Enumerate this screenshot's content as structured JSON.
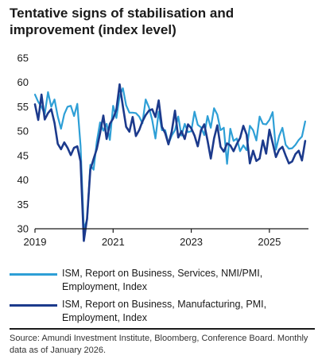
{
  "title": "Tentative signs of stabilisation and improvement (index level)",
  "source": "Source: Amundi Investment Institute, Bloomberg, Conference Board. Monthly data as of January 2026.",
  "chart_data": {
    "type": "line",
    "title": "Tentative signs of stabilisation and improvement (index level)",
    "xlabel": "",
    "ylabel": "",
    "xlim": [
      "2019-01",
      "2026-01"
    ],
    "ylim": [
      30,
      65
    ],
    "y_ticks": [
      30,
      35,
      40,
      45,
      50,
      55,
      60,
      65
    ],
    "x_ticks": [
      "2019",
      "2021",
      "2023",
      "2025"
    ],
    "grid": false,
    "legend_position": "bottom",
    "series": [
      {
        "name": "ISM, Report on Business, Services, NMI/PMI, Employment, Index",
        "color": "#2e9fd6",
        "x": [
          "2019-01",
          "2019-02",
          "2019-03",
          "2019-04",
          "2019-05",
          "2019-06",
          "2019-07",
          "2019-08",
          "2019-09",
          "2019-10",
          "2019-11",
          "2019-12",
          "2020-01",
          "2020-02",
          "2020-03",
          "2020-04",
          "2020-05",
          "2020-06",
          "2020-07",
          "2020-08",
          "2020-09",
          "2020-10",
          "2020-11",
          "2020-12",
          "2021-01",
          "2021-02",
          "2021-03",
          "2021-04",
          "2021-05",
          "2021-06",
          "2021-07",
          "2021-08",
          "2021-09",
          "2021-10",
          "2021-11",
          "2021-12",
          "2022-01",
          "2022-02",
          "2022-03",
          "2022-04",
          "2022-05",
          "2022-06",
          "2022-07",
          "2022-08",
          "2022-09",
          "2022-10",
          "2022-11",
          "2022-12",
          "2023-01",
          "2023-02",
          "2023-03",
          "2023-04",
          "2023-05",
          "2023-06",
          "2023-07",
          "2023-08",
          "2023-09",
          "2023-10",
          "2023-11",
          "2023-12",
          "2024-01",
          "2024-02",
          "2024-03",
          "2024-04",
          "2024-05",
          "2024-06",
          "2024-07",
          "2024-08",
          "2024-09",
          "2024-10",
          "2024-11",
          "2024-12",
          "2025-01",
          "2025-02",
          "2025-03",
          "2025-04",
          "2025-05",
          "2025-06",
          "2025-07",
          "2025-08",
          "2025-09",
          "2025-10",
          "2025-11",
          "2025-12"
        ],
        "y": [
          57.5,
          56.0,
          55.0,
          53.5,
          58.0,
          55.0,
          56.5,
          53.0,
          50.5,
          53.5,
          55.0,
          55.2,
          53.1,
          55.6,
          47.0,
          30.0,
          31.8,
          43.1,
          42.1,
          47.9,
          51.8,
          50.1,
          51.5,
          48.2,
          55.2,
          52.7,
          57.2,
          58.8,
          55.3,
          53.8,
          53.8,
          53.7,
          53.0,
          51.6,
          56.5,
          54.9,
          52.3,
          48.5,
          54.0,
          50.2,
          50.2,
          47.4,
          49.1,
          50.2,
          53.0,
          49.1,
          51.5,
          49.8,
          50.0,
          54.0,
          51.3,
          50.8,
          49.2,
          53.1,
          50.7,
          54.7,
          53.4,
          50.2,
          50.7,
          43.3,
          50.5,
          48.0,
          48.5,
          45.9,
          47.1,
          46.1,
          51.1,
          50.2,
          48.1,
          53.0,
          51.5,
          51.4,
          52.3,
          53.9,
          46.2,
          49.0,
          50.7,
          47.2,
          46.4,
          46.5,
          47.2,
          48.2,
          48.9,
          52.0
        ]
      },
      {
        "name": "ISM, Report on Business, Manufacturing, PMI, Employment, Index",
        "color": "#1c3a8c",
        "x": [
          "2019-01",
          "2019-02",
          "2019-03",
          "2019-04",
          "2019-05",
          "2019-06",
          "2019-07",
          "2019-08",
          "2019-09",
          "2019-10",
          "2019-11",
          "2019-12",
          "2020-01",
          "2020-02",
          "2020-03",
          "2020-04",
          "2020-05",
          "2020-06",
          "2020-07",
          "2020-08",
          "2020-09",
          "2020-10",
          "2020-11",
          "2020-12",
          "2021-01",
          "2021-02",
          "2021-03",
          "2021-04",
          "2021-05",
          "2021-06",
          "2021-07",
          "2021-08",
          "2021-09",
          "2021-10",
          "2021-11",
          "2021-12",
          "2022-01",
          "2022-02",
          "2022-03",
          "2022-04",
          "2022-05",
          "2022-06",
          "2022-07",
          "2022-08",
          "2022-09",
          "2022-10",
          "2022-11",
          "2022-12",
          "2023-01",
          "2023-02",
          "2023-03",
          "2023-04",
          "2023-05",
          "2023-06",
          "2023-07",
          "2023-08",
          "2023-09",
          "2023-10",
          "2023-11",
          "2023-12",
          "2024-01",
          "2024-02",
          "2024-03",
          "2024-04",
          "2024-05",
          "2024-06",
          "2024-07",
          "2024-08",
          "2024-09",
          "2024-10",
          "2024-11",
          "2024-12",
          "2025-01",
          "2025-02",
          "2025-03",
          "2025-04",
          "2025-05",
          "2025-06",
          "2025-07",
          "2025-08",
          "2025-09",
          "2025-10",
          "2025-11",
          "2025-12"
        ],
        "y": [
          55.5,
          52.3,
          57.5,
          52.4,
          53.7,
          54.5,
          51.7,
          47.4,
          46.3,
          47.7,
          46.6,
          45.1,
          46.6,
          46.9,
          43.8,
          27.5,
          32.1,
          42.1,
          44.3,
          46.4,
          49.6,
          53.2,
          48.4,
          51.5,
          52.6,
          54.4,
          59.6,
          55.1,
          50.9,
          49.9,
          52.9,
          49.0,
          50.2,
          52.0,
          53.3,
          54.2,
          54.5,
          52.9,
          56.3,
          50.9,
          49.6,
          47.3,
          49.9,
          54.2,
          48.7,
          50.0,
          48.4,
          51.4,
          50.6,
          49.1,
          46.9,
          50.2,
          51.4,
          48.1,
          44.4,
          48.5,
          51.2,
          46.8,
          45.8,
          47.5,
          47.1,
          45.9,
          47.4,
          48.6,
          51.1,
          49.3,
          43.4,
          46.0,
          43.9,
          44.4,
          48.1,
          45.4,
          50.3,
          47.6,
          44.7,
          46.2,
          46.8,
          45.0,
          43.4,
          43.8,
          45.3,
          46.0,
          44.0,
          48.0
        ]
      }
    ]
  }
}
